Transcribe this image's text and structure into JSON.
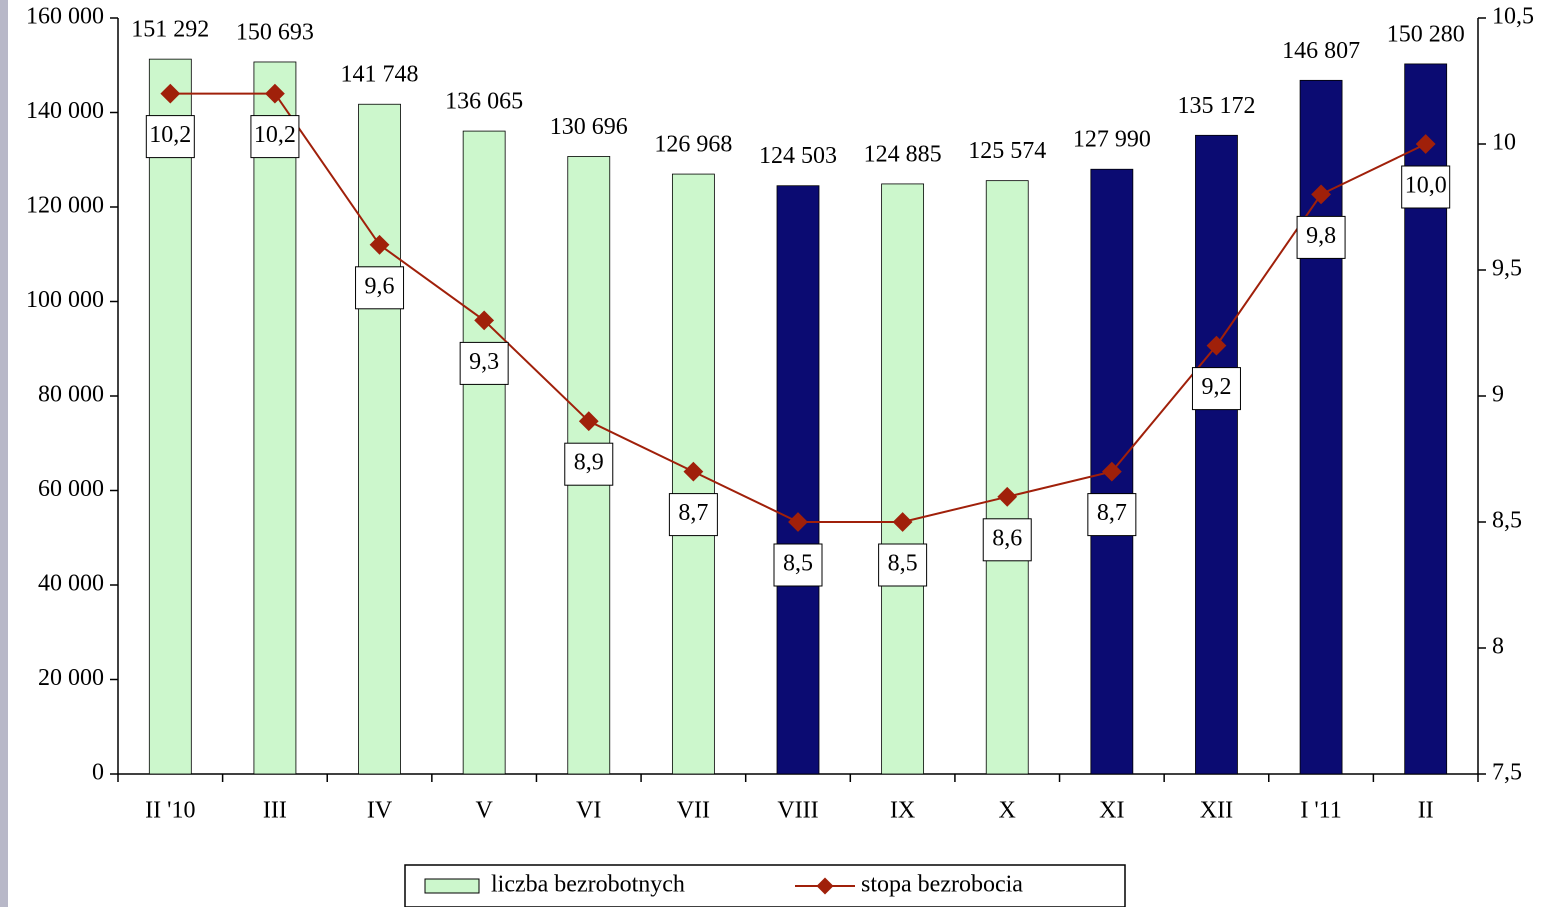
{
  "chart_data": {
    "type": "bar",
    "categories": [
      "II '10",
      "III",
      "IV",
      "V",
      "VI",
      "VII",
      "VIII",
      "IX",
      "X",
      "XI",
      "XII",
      "I '11",
      "II"
    ],
    "series": [
      {
        "name": "liczba bezrobotnych",
        "color": "#ccf7cc",
        "bar_colors": [
          "#ccf7cc",
          "#ccf7cc",
          "#ccf7cc",
          "#ccf7cc",
          "#ccf7cc",
          "#ccf7cc",
          "#0b0b72",
          "#ccf7cc",
          "#ccf7cc",
          "#0b0b72",
          "#0b0b72",
          "#0b0b72",
          "#0b0b72"
        ],
        "values": [
          151292,
          150693,
          141748,
          136065,
          130696,
          126968,
          124503,
          124885,
          125574,
          127990,
          135172,
          146807,
          150280
        ],
        "value_labels": [
          "151 292",
          "150 693",
          "141 748",
          "136 065",
          "130 696",
          "126 968",
          "124 503",
          "124 885",
          "125 574",
          "127 990",
          "135 172",
          "146 807",
          "150 280"
        ]
      },
      {
        "name": "stopa bezrobocia",
        "type": "line",
        "axis": "y2",
        "color": "#a0200a",
        "values": [
          10.2,
          10.2,
          9.6,
          9.3,
          8.9,
          8.7,
          8.5,
          8.5,
          8.6,
          8.7,
          9.2,
          9.8,
          10.0
        ],
        "value_labels": [
          "10,2",
          "10,2",
          "9,6",
          "9,3",
          "8,9",
          "8,7",
          "8,5",
          "8,5",
          "8,6",
          "8,7",
          "9,2",
          "9,8",
          "10,0"
        ]
      }
    ],
    "ylim": [
      0,
      160000
    ],
    "yticks": [
      0,
      {
        "value": 20000,
        "label": "20 000"
      },
      {
        "value": 40000,
        "label": "40 000"
      },
      {
        "value": 60000,
        "label": "60 000"
      },
      {
        "value": 80000,
        "label": "80 000"
      },
      {
        "value": 100000,
        "label": "100 000"
      },
      {
        "value": 120000,
        "label": "120 000"
      },
      {
        "value": 140000,
        "label": "140 000"
      },
      {
        "value": 160000,
        "label": "160 000"
      }
    ],
    "y2lim": [
      7.5,
      10.5
    ],
    "y2ticks": [
      {
        "value": 7.5,
        "label": "7,5"
      },
      8,
      {
        "value": 8.5,
        "label": "8,5"
      },
      9,
      {
        "value": 9.5,
        "label": "9,5"
      },
      10,
      {
        "value": 10.5,
        "label": "10,5"
      }
    ],
    "legend": "bottom"
  }
}
